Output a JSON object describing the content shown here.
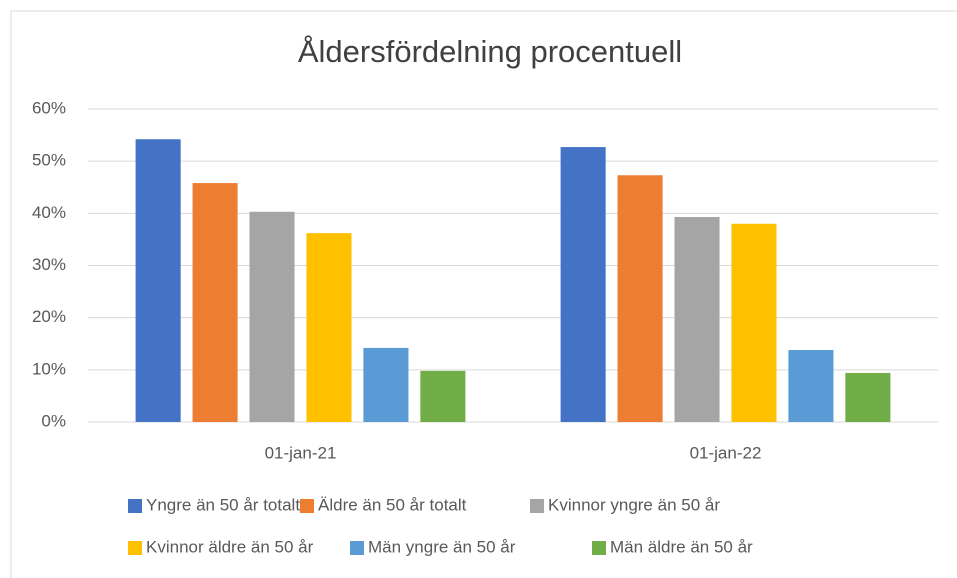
{
  "chart_data": {
    "type": "bar",
    "title": "Åldersfördelning procentuell",
    "categories": [
      "01-jan-21",
      "01-jan-22"
    ],
    "series": [
      {
        "name": "Yngre än 50 år totalt",
        "color": "#4472c4",
        "values": [
          54.2,
          52.7
        ]
      },
      {
        "name": "Äldre än 50 år totalt",
        "color": "#ed7d31",
        "values": [
          45.8,
          47.3
        ]
      },
      {
        "name": "Kvinnor yngre än 50 år",
        "color": "#a5a5a5",
        "values": [
          40.3,
          39.3
        ]
      },
      {
        "name": "Kvinnor äldre än 50 år",
        "color": "#ffc000",
        "values": [
          36.2,
          38.0
        ]
      },
      {
        "name": "Män yngre än 50 år",
        "color": "#5b9bd5",
        "values": [
          14.2,
          13.8
        ]
      },
      {
        "name": "Män äldre än 50 år",
        "color": "#70ad47",
        "values": [
          9.8,
          9.4
        ]
      }
    ],
    "ylim": [
      0,
      60
    ],
    "yticks": [
      {
        "value": 0,
        "label": "0%"
      },
      {
        "value": 10,
        "label": "10%"
      },
      {
        "value": 20,
        "label": "20%"
      },
      {
        "value": 30,
        "label": "30%"
      },
      {
        "value": 40,
        "label": "40%"
      },
      {
        "value": 50,
        "label": "50%"
      },
      {
        "value": 60,
        "label": "60%"
      }
    ],
    "grid": true,
    "legend": "bottom"
  }
}
